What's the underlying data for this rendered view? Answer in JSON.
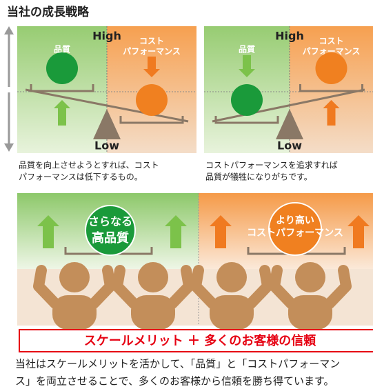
{
  "title": "当社の成長戦略",
  "panels": [
    {
      "high": "High",
      "low": "Low",
      "quality": "品質",
      "cost": [
        "コスト",
        "パフォーマンス"
      ],
      "caption": [
        "品質を向上させようとすれば、コスト",
        "パフォーマンスは低下するもの。"
      ]
    },
    {
      "high": "High",
      "low": "Low",
      "quality": "品質",
      "cost": [
        "コスト",
        "パフォーマンス"
      ],
      "caption": [
        "コストパフォーマンスを追求すれば",
        "品質が犠牲になりがちです。"
      ]
    }
  ],
  "strategy": {
    "quality": [
      "さらなる",
      "高品質"
    ],
    "cost": [
      "より高い",
      "コストパフォーマンス"
    ],
    "banner": "スケールメリット ＋ 多くのお客様の信頼"
  },
  "statement": [
    "当社はスケールメリットを活かして、「品質」と「コストパフォーマン",
    "ス」を両立させることで、多くのお客様から信頼を勝ち得ています。"
  ]
}
